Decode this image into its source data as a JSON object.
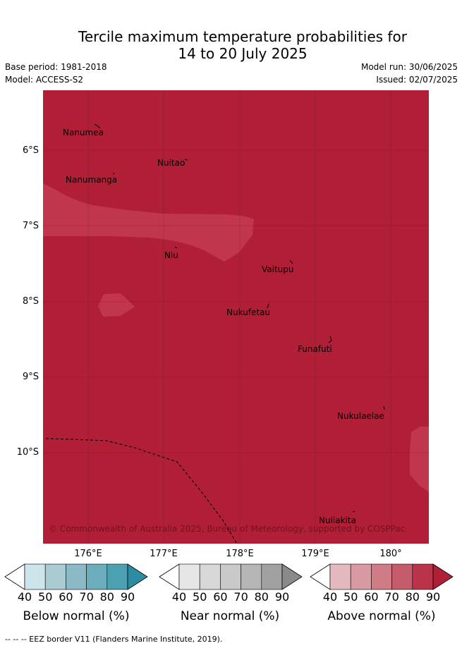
{
  "title": {
    "line1": "Tercile maximum temperature probabilities for",
    "line2": "14 to 20 July 2025"
  },
  "header": {
    "base_period": "Base period: 1981-2018",
    "model": "Model: ACCESS-S2",
    "model_run": "Model run: 30/06/2025",
    "issued": "Issued: 02/07/2025"
  },
  "map": {
    "latitude_labels": [
      "6°S",
      "7°S",
      "8°S",
      "9°S",
      "10°S"
    ],
    "longitude_labels": [
      "176°E",
      "177°E",
      "178°E",
      "179°E",
      "180°"
    ],
    "places": [
      "Nanumea",
      "Nuitao",
      "Nanumanga",
      "Niu",
      "Vaitupu",
      "Nukufetau",
      "Funafuti",
      "Nukulaelae",
      "Nuilakita"
    ],
    "dominant_category": "Above normal",
    "fill_colors": {
      "above_90": "#b11f37",
      "above_80": "#c2364d"
    },
    "credit": "© Commonwealth of Australia 2025, Bureau of Meteorology, supported by COSPPac"
  },
  "legends": [
    {
      "title": "Below normal (%)",
      "ticks": [
        "40",
        "50",
        "60",
        "70",
        "80",
        "90"
      ],
      "colors": [
        "#ffffff",
        "#cce5ea",
        "#a9cbd1",
        "#8bb9c5",
        "#6badbd",
        "#4ba0b1",
        "#2d8ca1"
      ]
    },
    {
      "title": "Near normal (%)",
      "ticks": [
        "40",
        "50",
        "60",
        "70",
        "80",
        "90"
      ],
      "colors": [
        "#ffffff",
        "#e6e6e6",
        "#d8d8d8",
        "#c9c9c9",
        "#b5b5b5",
        "#a1a1a1",
        "#8a8a8a"
      ]
    },
    {
      "title": "Above normal (%)",
      "ticks": [
        "40",
        "50",
        "60",
        "70",
        "80",
        "90"
      ],
      "colors": [
        "#ffffff",
        "#e3b9bf",
        "#d99aa2",
        "#d07c87",
        "#c45c6b",
        "#bb3349",
        "#b11f37"
      ]
    }
  ],
  "footer": "-- -- -- EEZ border V11 (Flanders Marine Institute, 2019)."
}
